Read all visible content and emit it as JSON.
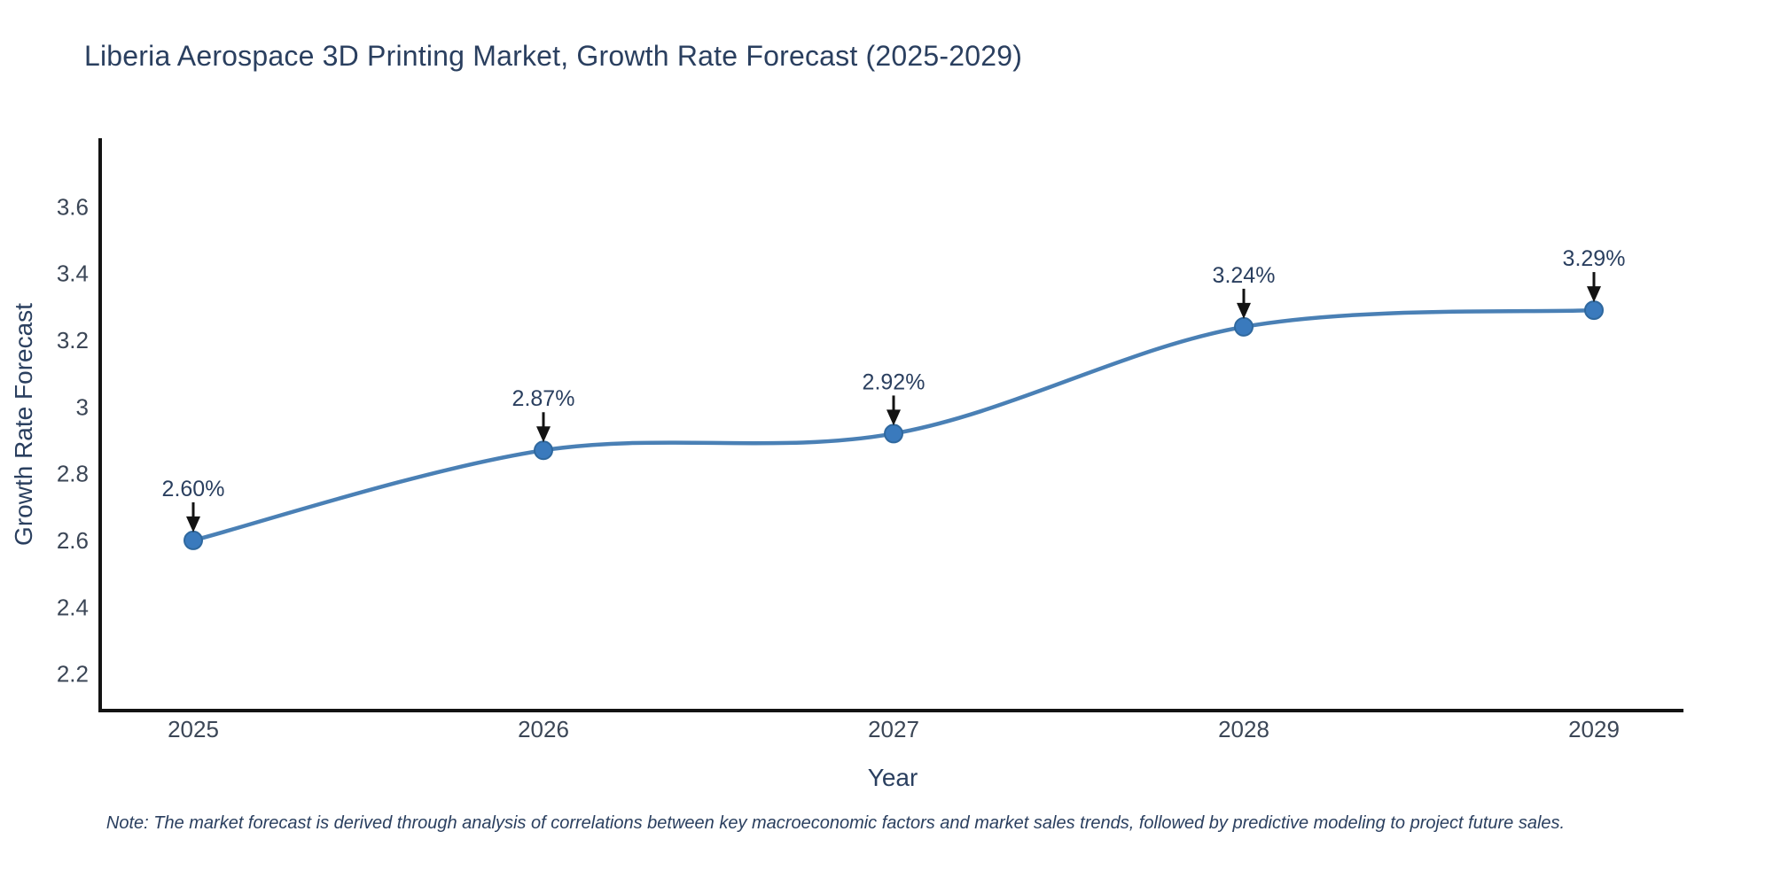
{
  "title": "Liberia Aerospace 3D Printing Market, Growth Rate Forecast (2025-2029)",
  "note": "Note: The market forecast is derived through analysis of correlations between key macroeconomic factors and market sales trends, followed by predictive modeling to project future sales.",
  "chart_data": {
    "type": "line",
    "title": "Liberia Aerospace 3D Printing Market, Growth Rate Forecast (2025-2029)",
    "xlabel": "Year",
    "ylabel": "Growth Rate Forecast",
    "categories": [
      "2025",
      "2026",
      "2027",
      "2028",
      "2029"
    ],
    "series": [
      {
        "name": "Growth Rate Forecast",
        "values": [
          2.6,
          2.87,
          2.92,
          3.24,
          3.29
        ]
      }
    ],
    "point_labels": [
      "2.60%",
      "2.87%",
      "2.92%",
      "3.24%",
      "3.29%"
    ],
    "ylim": [
      2.09,
      3.8
    ],
    "yticks": [
      2.2,
      2.4,
      2.6,
      2.8,
      3,
      3.2,
      3.4,
      3.6
    ],
    "ytick_labels": [
      "2.2",
      "2.4",
      "2.6",
      "2.8",
      "3",
      "3.2",
      "3.4",
      "3.6"
    ],
    "line_shape": "spline",
    "grid": false,
    "legend": "none",
    "markers": true,
    "annotation_arrows": true,
    "colors": {
      "line": "#4a80b5",
      "marker": "#3a7abd",
      "marker_edge": "#2f689e",
      "arrow": "#131313",
      "axis": "#131313",
      "title_text": "#2a3f5f",
      "tick_text": "#3b4656",
      "annotation_text": "#2a3f5f",
      "background": "#ffffff"
    }
  }
}
